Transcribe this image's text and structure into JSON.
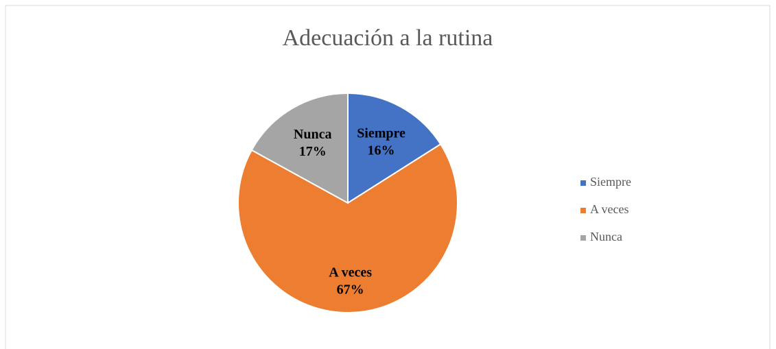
{
  "chart_data": {
    "type": "pie",
    "title": "Adecuación a la rutina",
    "categories": [
      "Siempre",
      "A veces",
      "Nunca"
    ],
    "values": [
      16,
      67,
      17
    ],
    "value_labels": [
      "16%",
      "67%",
      "17%"
    ],
    "colors": [
      "#4472c4",
      "#ed7d31",
      "#a5a5a5"
    ],
    "legend": "right"
  }
}
